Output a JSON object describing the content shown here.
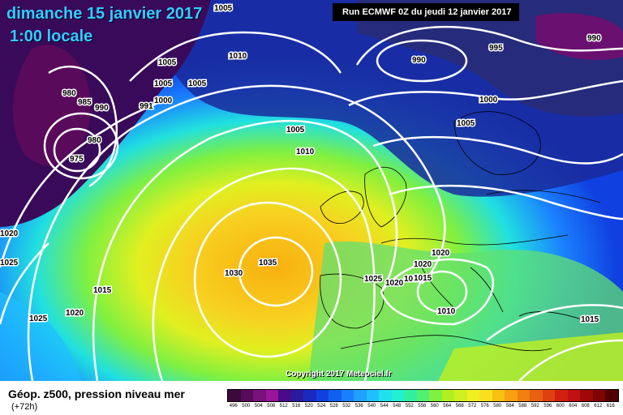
{
  "title_date": "dimanche 15 janvier 2017",
  "title_time": "1:00 locale",
  "run_info": "Run ECMWF 0Z du jeudi 12 janvier 2017",
  "copyright": "Copyright 2017 Meteociel.fr",
  "legend_title": "Géop. z500, pression niveau mer",
  "legend_subtitle": "(+72h)",
  "scale_values": [
    "496",
    "500",
    "504",
    "508",
    "512",
    "516",
    "520",
    "524",
    "528",
    "532",
    "536",
    "540",
    "544",
    "548",
    "552",
    "556",
    "560",
    "564",
    "568",
    "572",
    "576",
    "580",
    "584",
    "588",
    "592",
    "596",
    "600",
    "604",
    "608",
    "612",
    "616"
  ],
  "scale_colors": [
    "#3a0a3a",
    "#5a0a5a",
    "#7a107a",
    "#9a159a",
    "#4a0a8a",
    "#2a1aa0",
    "#1a2ac0",
    "#1040e0",
    "#1060f0",
    "#1a80ff",
    "#20a0ff",
    "#20c0ff",
    "#20e0f0",
    "#20f0d0",
    "#30f0a0",
    "#50f070",
    "#80f040",
    "#b0f020",
    "#d0f020",
    "#f0f020",
    "#f8e020",
    "#f8c010",
    "#f8a010",
    "#f08010",
    "#e86010",
    "#e04010",
    "#d02010",
    "#c01010",
    "#a00808",
    "#800404",
    "#500000"
  ],
  "isobars": [
    "1005",
    "1010",
    "1005",
    "1005",
    "980",
    "985",
    "990",
    "991",
    "1000",
    "1005",
    "975",
    "980",
    "1005",
    "1010",
    "990",
    "995",
    "990",
    "1000",
    "1005",
    "1020",
    "1025",
    "1015",
    "1020",
    "1025",
    "1030",
    "1035",
    "1025",
    "1020",
    "1015",
    "1020",
    "1010",
    "1015",
    "1015",
    "1020"
  ]
}
